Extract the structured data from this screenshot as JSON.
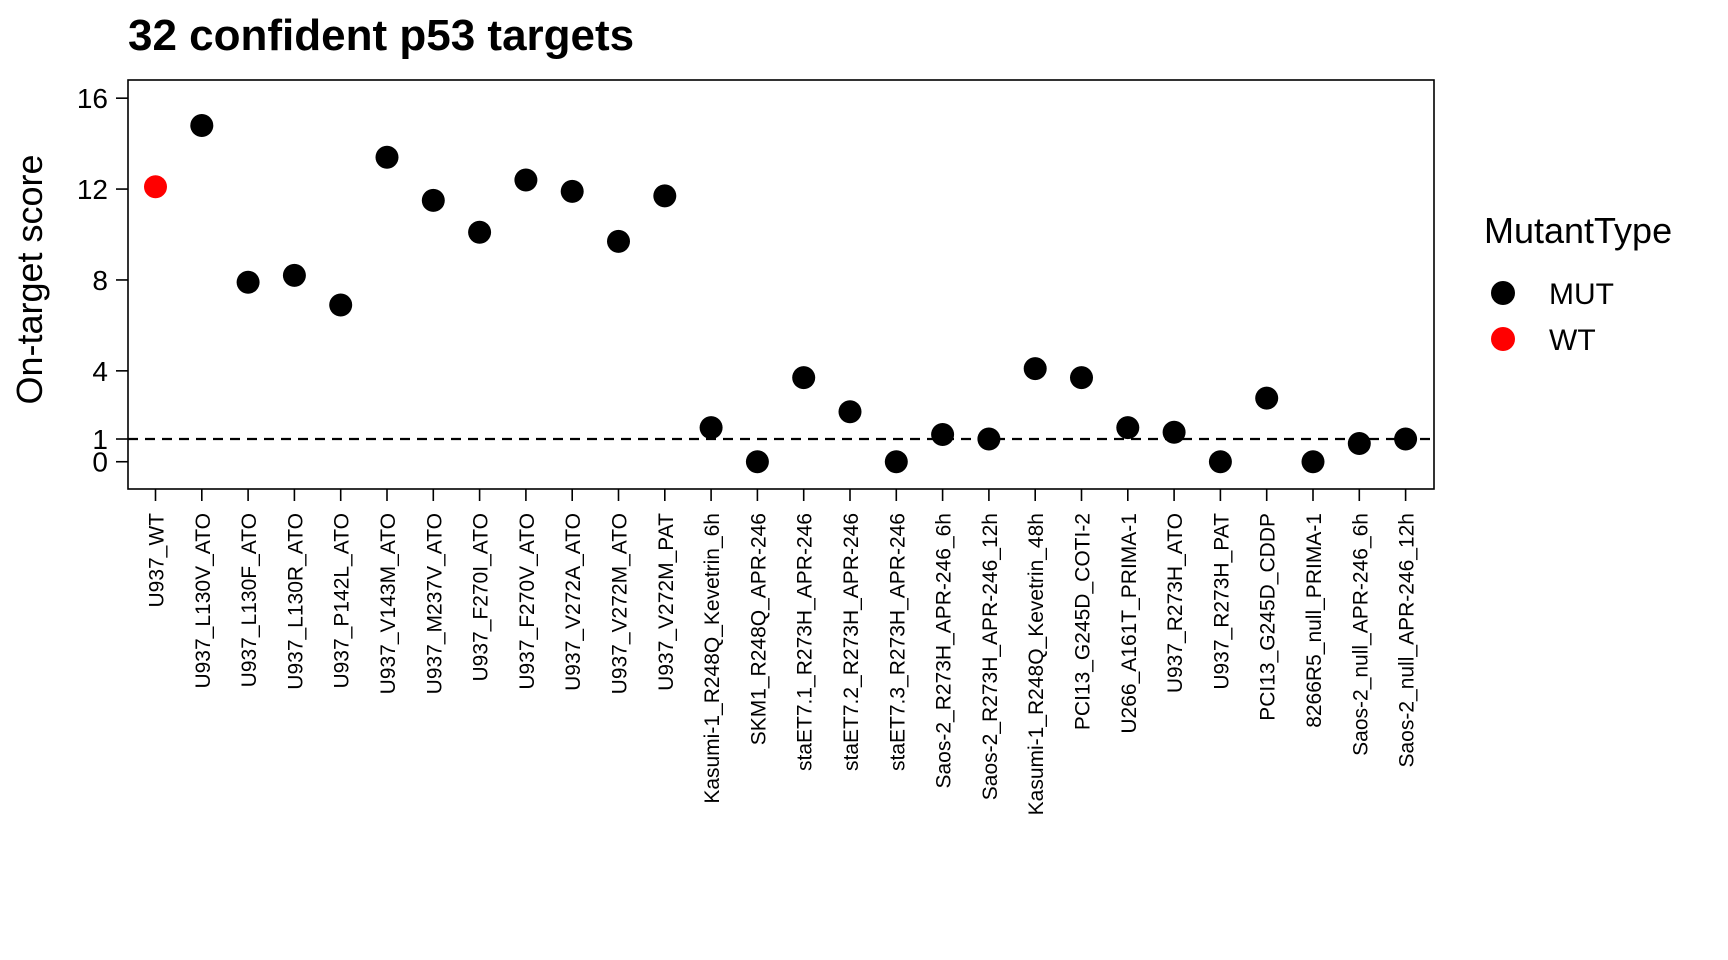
{
  "chart_data": {
    "type": "scatter",
    "title": "32 confident p53 targets",
    "xlabel": "",
    "ylabel": "On-target score",
    "ylim": [
      -1.2,
      16.8
    ],
    "yticks": [
      0,
      1,
      4,
      8,
      12,
      16
    ],
    "reference_line": {
      "y": 1,
      "style": "dashed"
    },
    "grid": false,
    "legend": {
      "title": "MutantType",
      "position": "right",
      "entries": [
        {
          "label": "MUT",
          "color": "#000000"
        },
        {
          "label": "WT",
          "color": "#ff0000"
        }
      ]
    },
    "colors": {
      "MUT": "#000000",
      "WT": "#ff0000"
    },
    "categories": [
      "U937_WT",
      "U937_L130V_ATO",
      "U937_L130F_ATO",
      "U937_L130R_ATO",
      "U937_P142L_ATO",
      "U937_V143M_ATO",
      "U937_M237V_ATO",
      "U937_F270I_ATO",
      "U937_F270V_ATO",
      "U937_V272A_ATO",
      "U937_V272M_ATO",
      "U937_V272M_PAT",
      "Kasumi-1_R248Q_Kevetrin_6h",
      "SKM1_R248Q_APR-246",
      "staET7.1_R273H_APR-246",
      "staET7.2_R273H_APR-246",
      "staET7.3_R273H_APR-246",
      "Saos-2_R273H_APR-246_6h",
      "Saos-2_R273H_APR-246_12h",
      "Kasumi-1_R248Q_Kevetrin_48h",
      "PCI13_G245D_COTI-2",
      "U266_A161T_PRIMA-1",
      "U937_R273H_ATO",
      "U937_R273H_PAT",
      "PCI13_G245D_CDDP",
      "8266R5_null_PRIMA-1",
      "Saos-2_null_APR-246_6h",
      "Saos-2_null_APR-246_12h"
    ],
    "values": [
      12.1,
      14.8,
      7.9,
      8.2,
      6.9,
      13.4,
      11.5,
      10.1,
      12.4,
      11.9,
      9.7,
      11.7,
      1.5,
      0.0,
      3.7,
      2.2,
      0.0,
      1.2,
      1.0,
      4.1,
      3.7,
      1.5,
      1.3,
      0.0,
      2.8,
      0.0,
      0.8,
      1.0
    ],
    "groups": [
      "WT",
      "MUT",
      "MUT",
      "MUT",
      "MUT",
      "MUT",
      "MUT",
      "MUT",
      "MUT",
      "MUT",
      "MUT",
      "MUT",
      "MUT",
      "MUT",
      "MUT",
      "MUT",
      "MUT",
      "MUT",
      "MUT",
      "MUT",
      "MUT",
      "MUT",
      "MUT",
      "MUT",
      "MUT",
      "MUT",
      "MUT",
      "MUT"
    ]
  }
}
